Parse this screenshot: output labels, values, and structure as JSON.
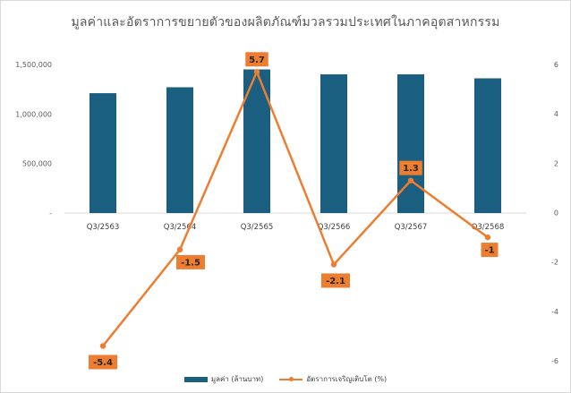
{
  "chart_data": {
    "type": "bar+line",
    "title": "มูลค่าและอัตราการขยายตัวของผลิตภัณฑ์มวลรวมประเทศในภาคอุตสาหกรรม",
    "categories": [
      "Q3/2563",
      "Q3/2564",
      "Q3/2565",
      "Q3/2566",
      "Q3/2567",
      "Q3/2568"
    ],
    "series": [
      {
        "name": "มูลค่า (ล้านบาท)",
        "type": "bar",
        "axis": "left",
        "color": "#1a5e80",
        "values": [
          1210000,
          1270000,
          1450000,
          1400000,
          1400000,
          1360000
        ]
      },
      {
        "name": "อัตราการเจริญเติบโต (%)",
        "type": "line",
        "axis": "right",
        "color": "#ed7d31",
        "values": [
          -5.4,
          -1.5,
          5.7,
          -2.1,
          1.3,
          -1
        ],
        "labels": [
          "-5.4",
          "-1.5",
          "5.7",
          "-2.1",
          "1.3",
          "-1"
        ]
      }
    ],
    "y_left": {
      "min": 0,
      "max": 1500000,
      "ticks": [
        {
          "value": 0,
          "label": "-"
        },
        {
          "value": 500000,
          "label": "500,000"
        },
        {
          "value": 1000000,
          "label": "1,000,000"
        },
        {
          "value": 1500000,
          "label": "1,500,000"
        }
      ]
    },
    "y_right": {
      "min": -6,
      "max": 6,
      "ticks": [
        {
          "value": -6,
          "label": "-6"
        },
        {
          "value": -4,
          "label": "-4"
        },
        {
          "value": -2,
          "label": "-2"
        },
        {
          "value": 0,
          "label": "0"
        },
        {
          "value": 2,
          "label": "2"
        },
        {
          "value": 4,
          "label": "4"
        },
        {
          "value": 6,
          "label": "6"
        }
      ]
    },
    "grid": false,
    "legend_position": "bottom"
  }
}
